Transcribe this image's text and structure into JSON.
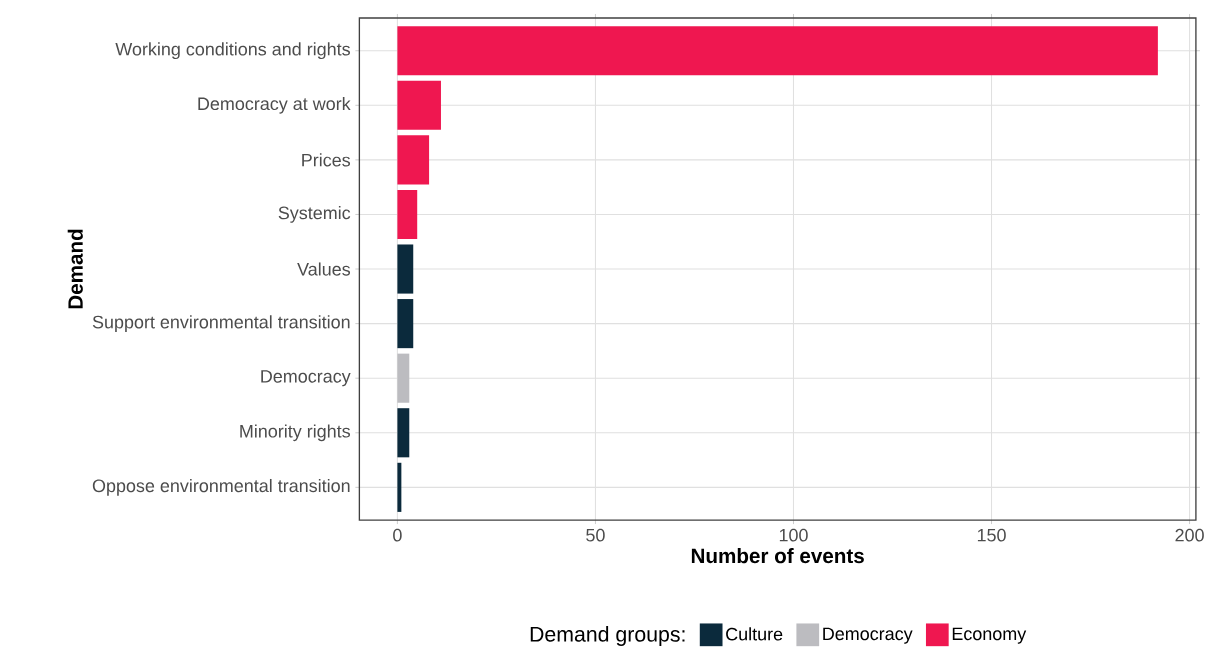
{
  "chart_data": {
    "type": "bar",
    "orientation": "horizontal",
    "xlabel": "Number of events",
    "ylabel": "Demand",
    "legend_title": "Demand groups:",
    "categories": [
      "Working conditions and rights",
      "Democracy at work",
      "Prices",
      "Systemic",
      "Values",
      "Support environmental transition",
      "Democracy",
      "Minority rights",
      "Oppose environmental transition"
    ],
    "series": [
      {
        "name": "Culture",
        "color": "#0b2a3c",
        "values": [
          null,
          null,
          null,
          null,
          4,
          4,
          null,
          3,
          1
        ]
      },
      {
        "name": "Democracy",
        "color": "#bcbcc0",
        "values": [
          null,
          null,
          null,
          null,
          null,
          null,
          3,
          null,
          null
        ]
      },
      {
        "name": "Economy",
        "color": "#ef1750",
        "values": [
          192,
          11,
          8,
          5,
          null,
          null,
          null,
          null,
          null
        ]
      }
    ],
    "xlim": [
      -9.6,
      201.6
    ],
    "xticks": [
      0,
      50,
      100,
      150,
      200
    ],
    "grid": true,
    "legend": "bottom"
  }
}
